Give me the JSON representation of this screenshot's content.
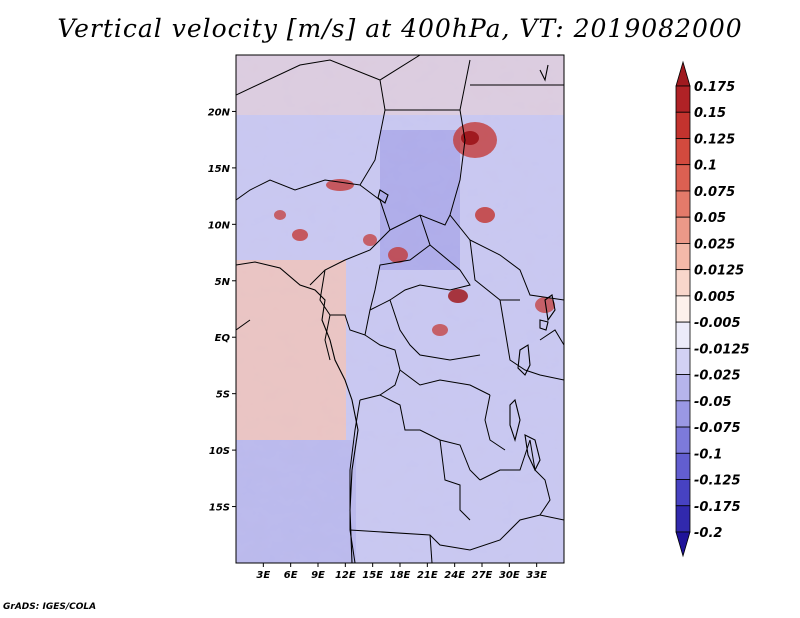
{
  "title": "Vertical velocity [m/s] at 400hPa, VT: 2019082000",
  "credit": "GrADS: IGES/COLA",
  "map": {
    "lon_range": [
      0,
      36
    ],
    "lat_range": [
      -20,
      25
    ],
    "lat_ticks": [
      {
        "value": 20,
        "label": "20N"
      },
      {
        "value": 15,
        "label": "15N"
      },
      {
        "value": 10,
        "label": "10N"
      },
      {
        "value": 5,
        "label": "5N"
      },
      {
        "value": 0,
        "label": "EQ"
      },
      {
        "value": -5,
        "label": "5S"
      },
      {
        "value": -10,
        "label": "10S"
      },
      {
        "value": -15,
        "label": "15S"
      }
    ],
    "lon_ticks": [
      {
        "value": 3,
        "label": "3E"
      },
      {
        "value": 6,
        "label": "6E"
      },
      {
        "value": 9,
        "label": "9E"
      },
      {
        "value": 12,
        "label": "12E"
      },
      {
        "value": 15,
        "label": "15E"
      },
      {
        "value": 18,
        "label": "18E"
      },
      {
        "value": 21,
        "label": "21E"
      },
      {
        "value": 24,
        "label": "24E"
      },
      {
        "value": 27,
        "label": "27E"
      },
      {
        "value": 30,
        "label": "30E"
      },
      {
        "value": 33,
        "label": "33E"
      }
    ]
  },
  "colorbar": {
    "levels": [
      "0.175",
      "0.15",
      "0.125",
      "0.1",
      "0.075",
      "0.05",
      "0.025",
      "0.0125",
      "0.005",
      "-0.005",
      "-0.0125",
      "-0.025",
      "-0.05",
      "-0.075",
      "-0.1",
      "-0.125",
      "-0.175",
      "-0.2"
    ],
    "colors": [
      "#a01a1f",
      "#b02226",
      "#c3332e",
      "#d24a3e",
      "#dc6052",
      "#e47a6a",
      "#ec9988",
      "#f3b9a9",
      "#f8d6cb",
      "#fdf1ec",
      "#ecebf9",
      "#d2d1f3",
      "#b6b4ec",
      "#9a98e4",
      "#7d7ada",
      "#625ed0",
      "#4742c2",
      "#3129ad",
      "#1f139a"
    ]
  }
}
